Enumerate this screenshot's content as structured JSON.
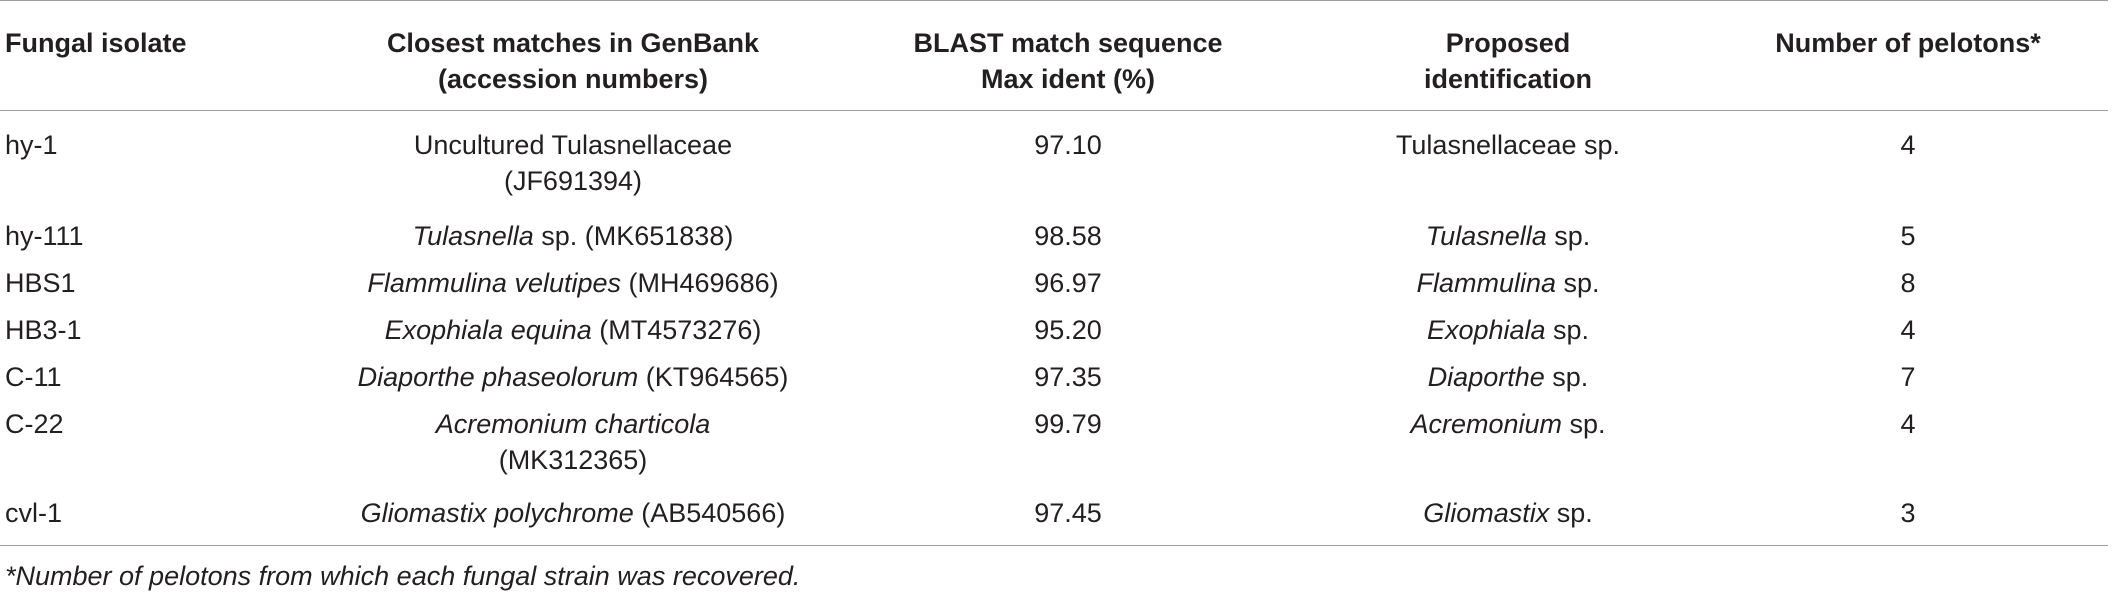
{
  "table": {
    "headers": {
      "fungal_isolate": "Fungal isolate",
      "closest_matches_line1": "Closest matches in GenBank",
      "closest_matches_line2": "(accession numbers)",
      "blast_line1": "BLAST match sequence",
      "blast_line2": "Max ident (%)",
      "proposed_line1": "Proposed",
      "proposed_line2": "identification",
      "pelotons": "Number of pelotons*"
    },
    "rows": [
      {
        "isolate": "hy-1",
        "match_italic": "",
        "match_plain": "Uncultured Tulasnellaceae",
        "match_accession": "(JF691394)",
        "max_ident": "97.10",
        "id_italic": "",
        "id_plain": "Tulasnellaceae sp.",
        "pelotons": "4"
      },
      {
        "isolate": "hy-111",
        "match_italic": "Tulasnella",
        "match_plain": " sp. (MK651838)",
        "max_ident": "98.58",
        "id_italic": "Tulasnella",
        "id_plain": " sp.",
        "pelotons": "5"
      },
      {
        "isolate": "HBS1",
        "match_italic": "Flammulina velutipes",
        "match_plain": " (MH469686)",
        "max_ident": "96.97",
        "id_italic": "Flammulina",
        "id_plain": " sp.",
        "pelotons": "8"
      },
      {
        "isolate": "HB3-1",
        "match_italic": "Exophiala equina",
        "match_plain": " (MT4573276)",
        "max_ident": "95.20",
        "id_italic": "Exophiala",
        "id_plain": " sp.",
        "pelotons": "4"
      },
      {
        "isolate": "C-11",
        "match_italic": "Diaporthe phaseolorum",
        "match_plain": " (KT964565)",
        "max_ident": "97.35",
        "id_italic": "Diaporthe",
        "id_plain": " sp.",
        "pelotons": "7"
      },
      {
        "isolate": "C-22",
        "match_italic": "Acremonium charticola",
        "match_accession": "(MK312365)",
        "max_ident": "99.79",
        "id_italic": "Acremonium",
        "id_plain": " sp.",
        "pelotons": "4"
      },
      {
        "isolate": "cvl-1",
        "match_italic": "Gliomastix polychrome",
        "match_plain": " (AB540566)",
        "max_ident": "97.45",
        "id_italic": "Gliomastix",
        "id_plain": " sp.",
        "pelotons": "3"
      }
    ]
  },
  "footnote": "*Number of pelotons from which each fungal strain was recovered.",
  "colors": {
    "text": "#231f20",
    "rule": "#9d9d9d"
  }
}
